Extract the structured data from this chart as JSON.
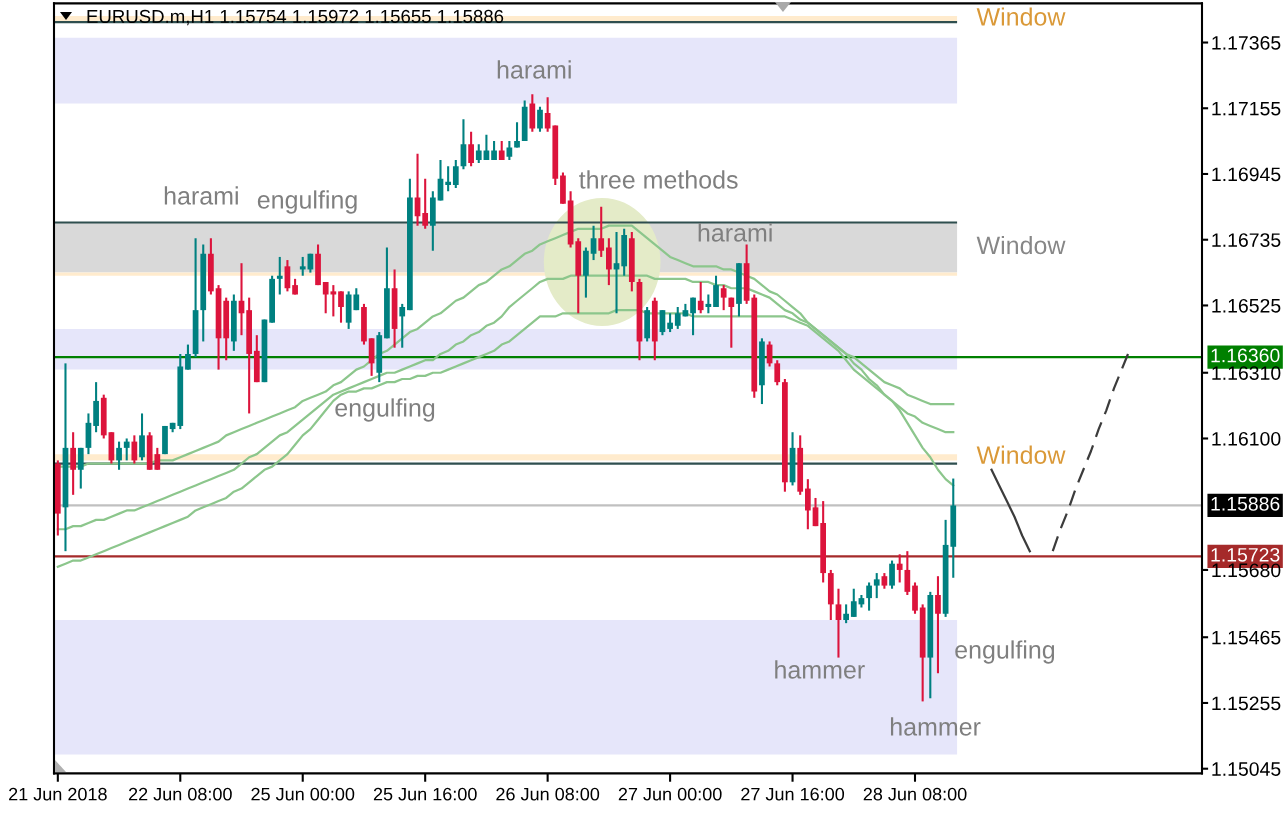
{
  "chart_data": {
    "type": "candlestick",
    "title": "EURUSD.m,H1 1.15754 1.15972 1.15655 1.15886",
    "categories": [
      "21 Jun 2018",
      null,
      null,
      null,
      null,
      null,
      null,
      null,
      null,
      null,
      null,
      null,
      null,
      null,
      null,
      null,
      "22 Jun 08:00",
      null,
      null,
      null,
      null,
      null,
      null,
      null,
      null,
      null,
      null,
      null,
      null,
      null,
      null,
      null,
      "25 Jun 00:00",
      null,
      null,
      null,
      null,
      null,
      null,
      null,
      null,
      null,
      null,
      null,
      null,
      null,
      null,
      null,
      "25 Jun 16:00",
      null,
      null,
      null,
      null,
      null,
      null,
      null,
      null,
      null,
      null,
      null,
      null,
      null,
      null,
      null,
      "26 Jun 08:00",
      null,
      null,
      null,
      null,
      null,
      null,
      null,
      null,
      null,
      null,
      null,
      null,
      null,
      null,
      null,
      "27 Jun 00:00",
      null,
      null,
      null,
      null,
      null,
      null,
      null,
      null,
      null,
      null,
      null,
      null,
      null,
      null,
      null,
      "27 Jun 16:00",
      null,
      null,
      null,
      null,
      null,
      null,
      null,
      null,
      null,
      null,
      null,
      null,
      null,
      null,
      null,
      "28 Jun 08:00",
      null,
      null,
      null,
      null,
      null,
      null,
      null,
      null,
      null,
      null,
      null,
      null,
      null,
      null,
      null,
      null,
      null,
      null,
      null,
      null,
      null,
      null,
      null,
      null,
      null,
      null,
      null,
      null,
      null,
      null,
      null,
      null,
      null,
      null,
      null,
      null,
      null
    ],
    "ohlc": [
      [
        1.1602,
        1.1603,
        1.1579,
        1.1586
      ],
      [
        1.1588,
        1.1634,
        1.1574,
        1.1607
      ],
      [
        1.1607,
        1.1612,
        1.1592,
        1.16
      ],
      [
        1.16,
        1.1607,
        1.1594,
        1.1607
      ],
      [
        1.1607,
        1.1618,
        1.1605,
        1.1615
      ],
      [
        1.1614,
        1.1628,
        1.1612,
        1.1622
      ],
      [
        1.1623,
        1.1624,
        1.161,
        1.1611
      ],
      [
        1.1612,
        1.1612,
        1.1602,
        1.1603
      ],
      [
        1.1603,
        1.1609,
        1.16,
        1.1607
      ],
      [
        1.1607,
        1.161,
        1.1603,
        1.1609
      ],
      [
        1.1609,
        1.1611,
        1.1602,
        1.1603
      ],
      [
        1.1604,
        1.1618,
        1.1603,
        1.1611
      ],
      [
        1.1611,
        1.1612,
        1.16,
        1.16
      ],
      [
        1.1605,
        1.1607,
        1.16,
        1.16
      ],
      [
        1.1605,
        1.1614,
        1.1605,
        1.1614
      ],
      [
        1.1613,
        1.1615,
        1.1612,
        1.1615
      ],
      [
        1.1614,
        1.1637,
        1.1613,
        1.1633
      ],
      [
        1.1632,
        1.164,
        1.1632,
        1.1637
      ],
      [
        1.1637,
        1.1674,
        1.1636,
        1.1651
      ],
      [
        1.1651,
        1.1672,
        1.1641,
        1.1669
      ],
      [
        1.1669,
        1.1674,
        1.1656,
        1.1657
      ],
      [
        1.1658,
        1.1659,
        1.1632,
        1.1642
      ],
      [
        1.1654,
        1.1655,
        1.1635,
        1.1642
      ],
      [
        1.1641,
        1.1656,
        1.1638,
        1.1654
      ],
      [
        1.1654,
        1.1666,
        1.1643,
        1.165
      ],
      [
        1.1651,
        1.1655,
        1.1618,
        1.1637
      ],
      [
        1.1638,
        1.1643,
        1.1628,
        1.1628
      ],
      [
        1.1628,
        1.1648,
        1.1628,
        1.1648
      ],
      [
        1.1647,
        1.1662,
        1.1647,
        1.1661
      ],
      [
        1.1661,
        1.1668,
        1.1656,
        1.1662
      ],
      [
        1.1665,
        1.1667,
        1.1657,
        1.1658
      ],
      [
        1.1659,
        1.1661,
        1.1656,
        1.1656
      ],
      [
        1.1664,
        1.1668,
        1.1662,
        1.1665
      ],
      [
        1.1664,
        1.1669,
        1.1663,
        1.1669
      ],
      [
        1.1669,
        1.1672,
        1.1659,
        1.1659
      ],
      [
        1.166,
        1.166,
        1.165,
        1.1656
      ],
      [
        1.1657,
        1.1659,
        1.1649,
        1.1656
      ],
      [
        1.1657,
        1.1657,
        1.1647,
        1.1652
      ],
      [
        1.1647,
        1.1657,
        1.1645,
        1.1656
      ],
      [
        1.1651,
        1.1658,
        1.1651,
        1.1656
      ],
      [
        1.1652,
        1.1653,
        1.164,
        1.1641
      ],
      [
        1.1642,
        1.1642,
        1.163,
        1.1634
      ],
      [
        1.1631,
        1.1644,
        1.1628,
        1.1643
      ],
      [
        1.1642,
        1.1671,
        1.1642,
        1.1658
      ],
      [
        1.1658,
        1.1664,
        1.1639,
        1.1645
      ],
      [
        1.1649,
        1.1653,
        1.1639,
        1.1652
      ],
      [
        1.1651,
        1.1693,
        1.1651,
        1.1687
      ],
      [
        1.1687,
        1.1701,
        1.1678,
        1.1681
      ],
      [
        1.1682,
        1.1693,
        1.1677,
        1.1678
      ],
      [
        1.1678,
        1.1689,
        1.167,
        1.1687
      ],
      [
        1.1686,
        1.1699,
        1.1686,
        1.1693
      ],
      [
        1.1691,
        1.1697,
        1.1689,
        1.1692
      ],
      [
        1.1691,
        1.1699,
        1.169,
        1.1697
      ],
      [
        1.1697,
        1.1712,
        1.1696,
        1.1704
      ],
      [
        1.1704,
        1.1708,
        1.1697,
        1.1698
      ],
      [
        1.1699,
        1.1704,
        1.1698,
        1.1702
      ],
      [
        1.1699,
        1.1707,
        1.1699,
        1.1702
      ],
      [
        1.1699,
        1.1705,
        1.1699,
        1.1702
      ],
      [
        1.1702,
        1.1705,
        1.1699,
        1.1699
      ],
      [
        1.17,
        1.1705,
        1.1699,
        1.1703
      ],
      [
        1.1703,
        1.1711,
        1.1703,
        1.1705
      ],
      [
        1.1705,
        1.1718,
        1.1705,
        1.1716
      ],
      [
        1.1717,
        1.172,
        1.1708,
        1.1709
      ],
      [
        1.1709,
        1.1716,
        1.1708,
        1.1715
      ],
      [
        1.1714,
        1.1719,
        1.1708,
        1.1709
      ],
      [
        1.171,
        1.171,
        1.1691,
        1.1693
      ],
      [
        1.1694,
        1.1695,
        1.1685,
        1.1685
      ],
      [
        1.1686,
        1.1689,
        1.1671,
        1.1672
      ],
      [
        1.1673,
        1.1674,
        1.165,
        1.1662
      ],
      [
        1.1662,
        1.1671,
        1.1655,
        1.167
      ],
      [
        1.1669,
        1.1678,
        1.1667,
        1.1674
      ],
      [
        1.1674,
        1.1684,
        1.1668,
        1.167
      ],
      [
        1.1671,
        1.1674,
        1.1659,
        1.1664
      ],
      [
        1.1664,
        1.1676,
        1.165,
        1.1666
      ],
      [
        1.1665,
        1.1677,
        1.1662,
        1.1675
      ],
      [
        1.1674,
        1.1676,
        1.1657,
        1.166
      ],
      [
        1.166,
        1.1661,
        1.1635,
        1.1641
      ],
      [
        1.1642,
        1.1652,
        1.1641,
        1.1651
      ],
      [
        1.1654,
        1.1655,
        1.1635,
        1.1641
      ],
      [
        1.1644,
        1.1651,
        1.1643,
        1.1651
      ],
      [
        1.1645,
        1.165,
        1.1644,
        1.1647
      ],
      [
        1.1646,
        1.1652,
        1.1645,
        1.165
      ],
      [
        1.1649,
        1.1653,
        1.1649,
        1.1651
      ],
      [
        1.165,
        1.1655,
        1.1643,
        1.1655
      ],
      [
        1.1654,
        1.166,
        1.165,
        1.1651
      ],
      [
        1.1652,
        1.1656,
        1.165,
        1.1653
      ],
      [
        1.1652,
        1.1662,
        1.1652,
        1.1659
      ],
      [
        1.1658,
        1.1659,
        1.1651,
        1.1655
      ],
      [
        1.1655,
        1.1655,
        1.1639,
        1.1652
      ],
      [
        1.1653,
        1.1666,
        1.1649,
        1.1666
      ],
      [
        1.1666,
        1.1672,
        1.1653,
        1.1654
      ],
      [
        1.1655,
        1.1656,
        1.1623,
        1.1625
      ],
      [
        1.1627,
        1.1642,
        1.1621,
        1.1641
      ],
      [
        1.164,
        1.1641,
        1.1633,
        1.1634
      ],
      [
        1.1634,
        1.1635,
        1.1627,
        1.1628
      ],
      [
        1.1628,
        1.1629,
        1.1593,
        1.1596
      ],
      [
        1.1596,
        1.1612,
        1.1595,
        1.1607
      ],
      [
        1.1607,
        1.1611,
        1.1592,
        1.1593
      ],
      [
        1.1594,
        1.1597,
        1.1581,
        1.1587
      ],
      [
        1.1588,
        1.1591,
        1.1582,
        1.1582
      ],
      [
        1.1583,
        1.159,
        1.1564,
        1.1567
      ],
      [
        1.1567,
        1.1568,
        1.1552,
        1.1557
      ],
      [
        1.1557,
        1.1562,
        1.154,
        1.1552
      ],
      [
        1.1552,
        1.1557,
        1.1551,
        1.1554
      ],
      [
        1.1553,
        1.1562,
        1.1553,
        1.1558
      ],
      [
        1.1557,
        1.156,
        1.1556,
        1.1559
      ],
      [
        1.1559,
        1.1564,
        1.1555,
        1.1563
      ],
      [
        1.1563,
        1.1567,
        1.1559,
        1.1565
      ],
      [
        1.1566,
        1.1567,
        1.1562,
        1.1563
      ],
      [
        1.1563,
        1.1571,
        1.1562,
        1.157
      ],
      [
        1.157,
        1.1573,
        1.1564,
        1.1568
      ],
      [
        1.1568,
        1.1574,
        1.156,
        1.1561
      ],
      [
        1.1563,
        1.1564,
        1.1554,
        1.1555
      ],
      [
        1.1556,
        1.1557,
        1.1526,
        1.154
      ],
      [
        1.154,
        1.1561,
        1.1527,
        1.156
      ],
      [
        1.156,
        1.1566,
        1.1535,
        1.1554
      ],
      [
        1.1554,
        1.1584,
        1.1553,
        1.1576
      ],
      [
        1.15754,
        1.15972,
        1.15655,
        1.15886
      ],
      null,
      null,
      null,
      null,
      null,
      null,
      null,
      null,
      null,
      null,
      null,
      null,
      null,
      null,
      null,
      null,
      null,
      null,
      null,
      null,
      null,
      null,
      null,
      null,
      null,
      null,
      null,
      null,
      null,
      null,
      null,
      null
    ],
    "colors": [
      "#dc143c",
      "#008080",
      "#dc143c",
      "#008080",
      "#008080",
      "#008080",
      "#dc143c",
      "#dc143c",
      "#008080",
      "#008080",
      "#dc143c",
      "#008080",
      "#dc143c",
      "#dc143c",
      "#008080",
      "#008080",
      "#008080",
      "#008080",
      "#008080",
      "#008080",
      "#dc143c",
      "#dc143c",
      "#dc143c",
      "#008080",
      "#dc143c",
      "#dc143c",
      "#dc143c",
      "#008080",
      "#008080",
      "#008080",
      "#dc143c",
      "#dc143c",
      "#008080",
      "#008080",
      "#dc143c",
      "#dc143c",
      "#dc143c",
      "#dc143c",
      "#008080",
      "#008080",
      "#dc143c",
      "#dc143c",
      "#008080",
      "#008080",
      "#dc143c",
      "#008080",
      "#008080",
      "#dc143c",
      "#dc143c",
      "#008080",
      "#008080",
      "#008080",
      "#008080",
      "#008080",
      "#dc143c",
      "#008080",
      "#008080",
      "#008080",
      "#dc143c",
      "#008080",
      "#008080",
      "#008080",
      "#dc143c",
      "#008080",
      "#dc143c",
      "#dc143c",
      "#dc143c",
      "#dc143c",
      "#dc143c",
      "#008080",
      "#008080",
      "#dc143c",
      "#dc143c",
      "#008080",
      "#008080",
      "#dc143c",
      "#dc143c",
      "#008080",
      "#dc143c",
      "#008080",
      "#008080",
      "#008080",
      "#008080",
      "#008080",
      "#dc143c",
      "#008080",
      "#008080",
      "#dc143c",
      "#dc143c",
      "#008080",
      "#dc143c",
      "#dc143c",
      "#008080",
      "#dc143c",
      "#dc143c",
      "#dc143c",
      "#008080",
      "#dc143c",
      "#dc143c",
      "#dc143c",
      "#dc143c",
      "#dc143c",
      "#dc143c",
      "#008080",
      "#008080",
      "#008080",
      "#008080",
      "#008080",
      "#dc143c",
      "#008080",
      "#dc143c",
      "#dc143c",
      "#dc143c",
      "#dc143c",
      "#008080",
      "#dc143c",
      "#008080",
      "#008080",
      null,
      null,
      null,
      null,
      null,
      null,
      null,
      null,
      null,
      null,
      null,
      null,
      null,
      null,
      null,
      null,
      null,
      null,
      null,
      null,
      null,
      null,
      null,
      null,
      null,
      null,
      null,
      null,
      null,
      null,
      null,
      null
    ],
    "series": [
      {
        "type": "line",
        "color": "#8cc68c",
        "values": [
          1.1601,
          1.1601,
          1.1601,
          1.1601,
          1.1602,
          1.1602,
          1.1602,
          1.1602,
          1.1602,
          1.1602,
          1.1602,
          1.1602,
          1.1602,
          1.1603,
          1.1603,
          1.1603,
          1.1604,
          1.1605,
          1.1606,
          1.1607,
          1.1608,
          1.1609,
          1.1611,
          1.1612,
          1.1613,
          1.1614,
          1.1615,
          1.1616,
          1.1617,
          1.1618,
          1.1619,
          1.162,
          1.1622,
          1.1623,
          1.1624,
          1.1625,
          1.1627,
          1.1628,
          1.163,
          1.1632,
          1.1633,
          1.1635,
          1.1637,
          1.1638,
          1.164,
          1.1642,
          1.1644,
          1.1645,
          1.1647,
          1.1649,
          1.165,
          1.1652,
          1.1654,
          1.1655,
          1.1657,
          1.1659,
          1.166,
          1.1662,
          1.1664,
          1.1665,
          1.1667,
          1.1669,
          1.167,
          1.1672,
          1.1673,
          1.1674,
          1.1675,
          1.1676,
          1.1677,
          1.1677,
          1.1677,
          1.1677,
          1.1678,
          1.1678,
          1.1678,
          1.1678,
          1.1676,
          1.1674,
          1.1672,
          1.167,
          1.1668,
          1.1667,
          1.1666,
          1.1665,
          1.1665,
          1.1665,
          1.1665,
          1.1664,
          1.1664,
          1.1663,
          1.1662,
          1.1661,
          1.1659,
          1.1657,
          1.1656,
          1.1654,
          1.1652,
          1.165,
          1.1647,
          1.1645,
          1.1643,
          1.1641,
          1.1639,
          1.1637,
          1.1634,
          1.1632,
          1.1629,
          1.1627,
          1.1624,
          1.1622,
          1.1619,
          1.1615,
          1.1611,
          1.1607,
          1.1604,
          1.16,
          1.1597,
          1.1595,
          null,
          null,
          null,
          null,
          null,
          null,
          null,
          null,
          null,
          null,
          null,
          null,
          null,
          null,
          null,
          null,
          null,
          null,
          null,
          null,
          null,
          null,
          null,
          null,
          null,
          null,
          null,
          null,
          null,
          null,
          null,
          null
        ]
      },
      {
        "type": "line",
        "color": "#8cc68c",
        "values": [
          1.1581,
          1.1581,
          1.1582,
          1.1582,
          1.1583,
          1.1584,
          1.1584,
          1.1585,
          1.1586,
          1.1587,
          1.1587,
          1.1588,
          1.1589,
          1.159,
          1.1591,
          1.1592,
          1.1593,
          1.1594,
          1.1595,
          1.1596,
          1.1597,
          1.1598,
          1.1599,
          1.16,
          1.1602,
          1.1604,
          1.1605,
          1.1607,
          1.1609,
          1.1611,
          1.1612,
          1.1614,
          1.1616,
          1.1618,
          1.162,
          1.1622,
          1.1624,
          1.1625,
          1.1626,
          1.1627,
          1.1628,
          1.1629,
          1.163,
          1.1631,
          1.1631,
          1.1632,
          1.1633,
          1.1634,
          1.1635,
          1.1635,
          1.1637,
          1.1638,
          1.164,
          1.1641,
          1.1643,
          1.1644,
          1.1646,
          1.1647,
          1.1649,
          1.1652,
          1.1654,
          1.1656,
          1.1658,
          1.166,
          1.1661,
          1.1661,
          1.1661,
          1.1662,
          1.1662,
          1.1662,
          1.1662,
          1.1662,
          1.1662,
          1.1662,
          1.1662,
          1.1662,
          1.1662,
          1.1662,
          1.1661,
          1.1661,
          1.1661,
          1.1661,
          1.1661,
          1.166,
          1.166,
          1.166,
          1.1659,
          1.1659,
          1.1658,
          1.1658,
          1.1658,
          1.1657,
          1.1656,
          1.1655,
          1.1653,
          1.1651,
          1.165,
          1.1648,
          1.1647,
          1.1645,
          1.1643,
          1.1641,
          1.1639,
          1.1637,
          1.1636,
          1.1634,
          1.1632,
          1.163,
          1.1628,
          1.1627,
          1.1626,
          1.1624,
          1.1623,
          1.1622,
          1.1621,
          1.1621,
          1.1621,
          1.1621,
          null,
          null,
          null,
          null,
          null,
          null,
          null,
          null,
          null,
          null,
          null,
          null,
          null,
          null,
          null,
          null,
          null,
          null,
          null,
          null,
          null,
          null,
          null,
          null,
          null,
          null,
          null,
          null,
          null,
          null,
          null,
          null
        ]
      },
      {
        "type": "line",
        "color": "#8cc68c",
        "values": [
          1.1569,
          1.157,
          1.1571,
          1.1571,
          1.1572,
          1.1573,
          1.1574,
          1.1575,
          1.1576,
          1.1577,
          1.1578,
          1.1579,
          1.158,
          1.1581,
          1.1582,
          1.1583,
          1.1584,
          1.1585,
          1.1587,
          1.1588,
          1.1589,
          1.159,
          1.1591,
          1.1593,
          1.1594,
          1.1596,
          1.1598,
          1.16,
          1.1601,
          1.1603,
          1.1605,
          1.1608,
          1.1611,
          1.1613,
          1.1616,
          1.1619,
          1.1622,
          1.1624,
          1.1625,
          1.1625,
          1.1626,
          1.1626,
          1.1627,
          1.1628,
          1.1628,
          1.1629,
          1.1629,
          1.163,
          1.163,
          1.1631,
          1.1631,
          1.1632,
          1.1633,
          1.1634,
          1.1635,
          1.1636,
          1.1637,
          1.1638,
          1.164,
          1.1641,
          1.1643,
          1.1645,
          1.1647,
          1.1649,
          1.1649,
          1.1649,
          1.165,
          1.165,
          1.165,
          1.165,
          1.165,
          1.165,
          1.165,
          1.1651,
          1.1651,
          1.1651,
          1.1651,
          1.165,
          1.165,
          1.165,
          1.165,
          1.165,
          1.165,
          1.1649,
          1.1649,
          1.1649,
          1.1649,
          1.1649,
          1.1649,
          1.1649,
          1.1649,
          1.1649,
          1.1649,
          1.1649,
          1.1649,
          1.1649,
          1.1648,
          1.1647,
          1.1646,
          1.1644,
          1.1642,
          1.164,
          1.1638,
          1.1635,
          1.1632,
          1.163,
          1.1628,
          1.1626,
          1.1624,
          1.1622,
          1.162,
          1.1618,
          1.1617,
          1.1615,
          1.1614,
          1.1613,
          1.1612,
          1.1612,
          null,
          null,
          null,
          null,
          null,
          null,
          null,
          null,
          null,
          null,
          null,
          null,
          null,
          null,
          null,
          null,
          null,
          null,
          null,
          null,
          null,
          null,
          null,
          null,
          null,
          null,
          null,
          null,
          null,
          null,
          null,
          null
        ]
      },
      {
        "type": "line",
        "color": "#3c3c3c",
        "line_style": "solid",
        "values": [
          null,
          null,
          null,
          null,
          null,
          null,
          null,
          null,
          null,
          null,
          null,
          null,
          null,
          null,
          null,
          null,
          null,
          null,
          null,
          null,
          null,
          null,
          null,
          null,
          null,
          null,
          null,
          null,
          null,
          null,
          null,
          null,
          null,
          null,
          null,
          null,
          null,
          null,
          null,
          null,
          null,
          null,
          null,
          null,
          null,
          null,
          null,
          null,
          null,
          null,
          null,
          null,
          null,
          null,
          null,
          null,
          null,
          null,
          null,
          null,
          null,
          null,
          null,
          null,
          null,
          null,
          null,
          null,
          null,
          null,
          null,
          null,
          null,
          null,
          null,
          null,
          null,
          null,
          null,
          null,
          null,
          null,
          null,
          null,
          null,
          null,
          null,
          null,
          null,
          null,
          null,
          null,
          null,
          null,
          null,
          null,
          null,
          null,
          null,
          null,
          null,
          null,
          null,
          null,
          null,
          null,
          null,
          null,
          null,
          null,
          null,
          null,
          null,
          null,
          null,
          null,
          null,
          null,
          null,
          null,
          null,
          null,
          1.16,
          1.1595,
          1.159,
          1.1585,
          1.1579,
          1.1574,
          null,
          null,
          null,
          null,
          null,
          null,
          null,
          null,
          null,
          null,
          null,
          null,
          null,
          null,
          null,
          null,
          null,
          null,
          null,
          null,
          null,
          null
        ]
      },
      {
        "type": "line",
        "color": "#3c3c3c",
        "line_style": "dashed",
        "values": [
          null,
          null,
          null,
          null,
          null,
          null,
          null,
          null,
          null,
          null,
          null,
          null,
          null,
          null,
          null,
          null,
          null,
          null,
          null,
          null,
          null,
          null,
          null,
          null,
          null,
          null,
          null,
          null,
          null,
          null,
          null,
          null,
          null,
          null,
          null,
          null,
          null,
          null,
          null,
          null,
          null,
          null,
          null,
          null,
          null,
          null,
          null,
          null,
          null,
          null,
          null,
          null,
          null,
          null,
          null,
          null,
          null,
          null,
          null,
          null,
          null,
          null,
          null,
          null,
          null,
          null,
          null,
          null,
          null,
          null,
          null,
          null,
          null,
          null,
          null,
          null,
          null,
          null,
          null,
          null,
          null,
          null,
          null,
          null,
          null,
          null,
          null,
          null,
          null,
          null,
          null,
          null,
          null,
          null,
          null,
          null,
          null,
          null,
          null,
          null,
          null,
          null,
          null,
          null,
          null,
          null,
          null,
          null,
          null,
          null,
          null,
          null,
          null,
          null,
          null,
          null,
          null,
          null,
          null,
          null,
          null,
          null,
          null,
          null,
          null,
          null,
          null,
          null,
          null,
          null,
          1.1574,
          1.1581,
          1.1587,
          1.1594,
          1.16,
          1.1606,
          1.1613,
          1.1619,
          1.1626,
          1.1632,
          1.1638,
          null,
          null,
          null,
          null,
          null,
          null,
          null,
          null,
          null
        ]
      }
    ],
    "ylim": [
      1.1503,
      1.1749
    ],
    "yticks": [
      1.17365,
      1.17155,
      1.16945,
      1.16735,
      1.16525,
      {
        "value": 1.1631,
        "label": "1.16310"
      },
      {
        "value": 1.161,
        "label": "1.16100"
      },
      {
        "value": 1.1568,
        "label": "1.15680"
      },
      1.15465,
      1.15255,
      1.15045
    ],
    "bands": [
      {
        "axis": "y",
        "from": 1.1743,
        "to": 1.1745,
        "label": "Window",
        "color": "#ffebcd"
      },
      {
        "axis": "y",
        "from": 1.1717,
        "to": 1.1738,
        "color": "#e6e6fa"
      },
      {
        "axis": "y",
        "from": 1.1663,
        "to": 1.1679,
        "label": "Window",
        "color": "#d9d9d9"
      },
      {
        "axis": "y",
        "from": 1.1662,
        "to": 1.1663,
        "color": "#ffebcd"
      },
      {
        "axis": "y",
        "from": 1.1632,
        "to": 1.1645,
        "color": "#e6e6fa"
      },
      {
        "axis": "y",
        "from": 1.1603,
        "to": 1.1605,
        "label": "Window",
        "color": "#ffebcd"
      },
      {
        "axis": "y",
        "from": 1.1509,
        "to": 1.1552,
        "color": "#e6e6fa"
      }
    ],
    "ref_lines": [
      {
        "axis": "y",
        "value": 1.1743,
        "color": "#2f4f4f"
      },
      {
        "axis": "y",
        "value": 1.1679,
        "color": "#2f4f4f"
      },
      {
        "axis": "y",
        "value": 1.1602,
        "color": "#2f4f4f"
      },
      {
        "axis": "y",
        "value": 1.1636,
        "label": "1.16360",
        "color": "#008000"
      },
      {
        "axis": "y",
        "value": 1.15886,
        "label": "1.15886",
        "color": "#c0c0c0"
      },
      {
        "axis": "y",
        "value": 1.15723,
        "label": "1.15723",
        "color": "#a52a2a"
      }
    ],
    "annotations": [
      "harami",
      "harami",
      "engulfing",
      "three methods",
      "harami",
      "engulfing",
      "hammer",
      "engulfing",
      "hammer"
    ]
  }
}
